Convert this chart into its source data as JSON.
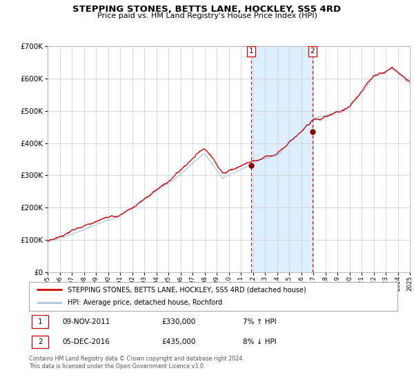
{
  "title": "STEPPING STONES, BETTS LANE, HOCKLEY, SS5 4RD",
  "subtitle": "Price paid vs. HM Land Registry's House Price Index (HPI)",
  "legend_line1": "STEPPING STONES, BETTS LANE, HOCKLEY, SS5 4RD (detached house)",
  "legend_line2": "HPI: Average price, detached house, Rochford",
  "annotation1_date": "09-NOV-2011",
  "annotation1_price": "£330,000",
  "annotation1_hpi": "7% ↑ HPI",
  "annotation2_date": "05-DEC-2016",
  "annotation2_price": "£435,000",
  "annotation2_hpi": "8% ↓ HPI",
  "footer": "Contains HM Land Registry data © Crown copyright and database right 2024.\nThis data is licensed under the Open Government Licence v3.0.",
  "hpi_color": "#aac8e8",
  "price_color": "#cc0000",
  "marker_color": "#880000",
  "shade_color": "#ddeeff",
  "vline_color": "#cc0000",
  "grid_color": "#cccccc",
  "bg_color": "#ffffff",
  "ylim": [
    0,
    700000
  ],
  "yticks": [
    0,
    100000,
    200000,
    300000,
    400000,
    500000,
    600000,
    700000
  ],
  "year_start": 1995,
  "year_end": 2025,
  "sale1_year": 2011.87,
  "sale2_year": 2016.92,
  "sale1_price": 330000,
  "sale2_price": 435000
}
